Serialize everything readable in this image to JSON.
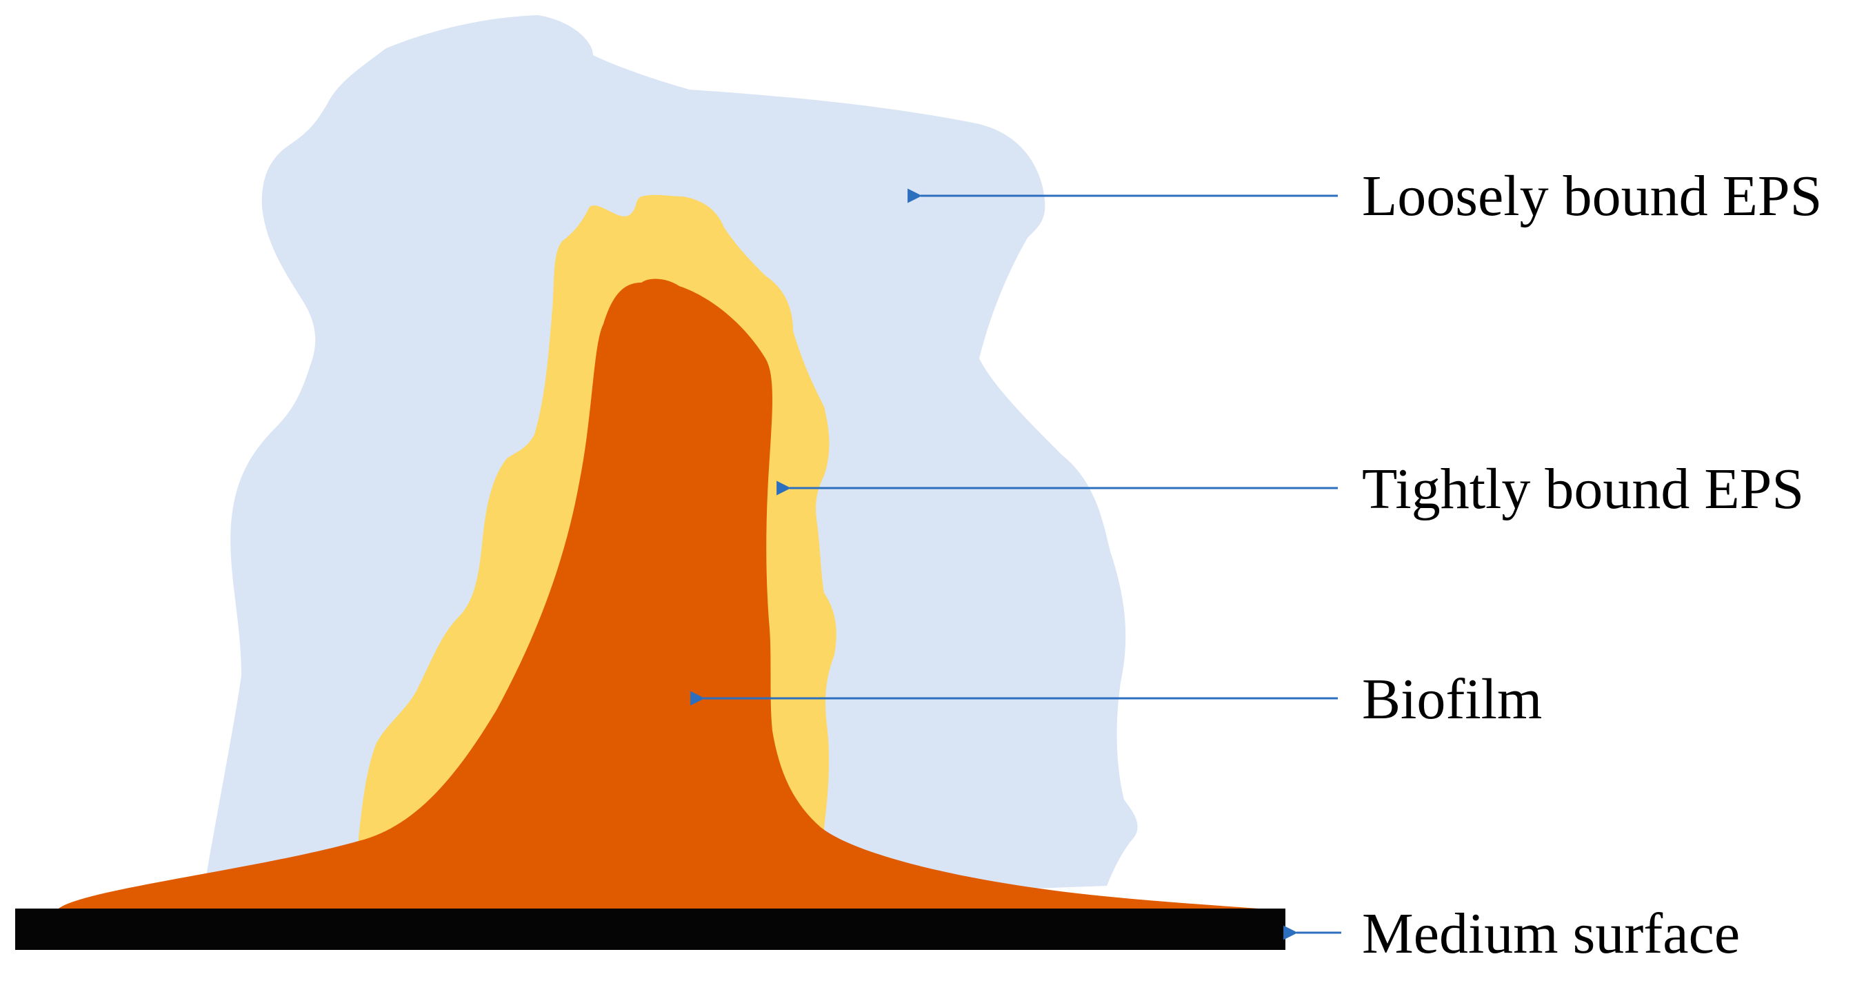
{
  "colors": {
    "loosely_bound_eps": "#D9E4F4",
    "tightly_bound_eps": "#FDD763",
    "biofilm": "#E05A00",
    "medium_surface": "#050505",
    "arrow": "#2D6FBF"
  },
  "labels": {
    "loosely_bound_eps": "Loosely bound EPS",
    "tightly_bound_eps": "Tightly bound EPS",
    "biofilm": "Biofilm",
    "medium_surface": "Medium surface"
  }
}
